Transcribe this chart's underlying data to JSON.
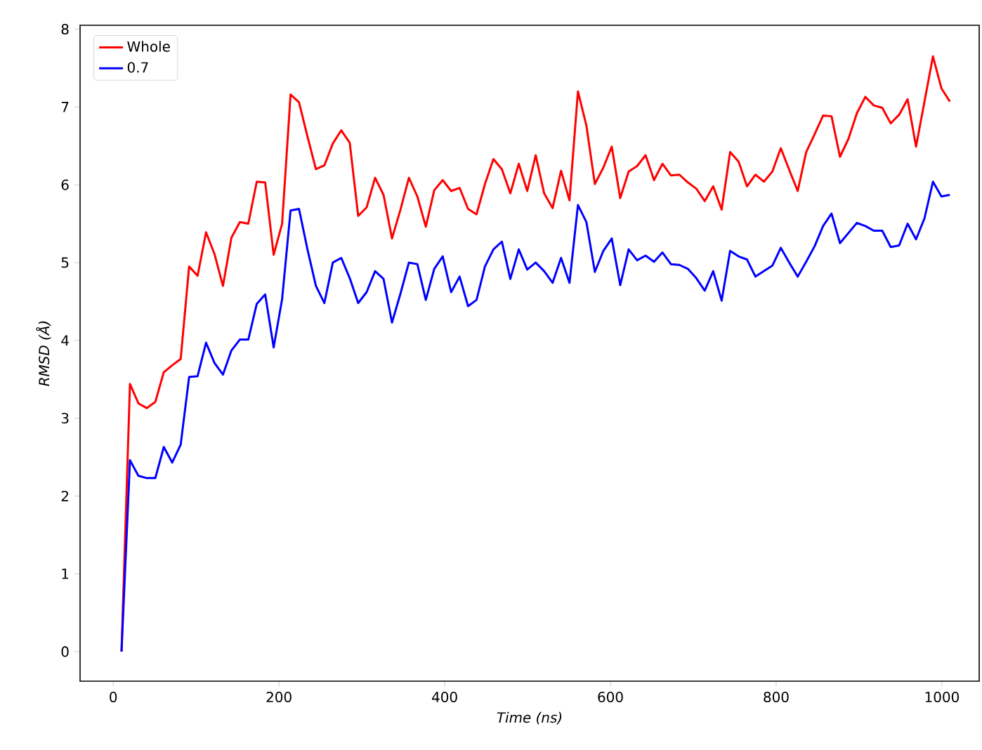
{
  "chart_data": {
    "type": "line",
    "xlabel": "Time (ns)",
    "ylabel": "RMSD (Å)",
    "x": [
      10,
      20.2,
      30.4,
      40.6,
      50.8,
      61,
      71.2,
      81.4,
      91.6,
      101.8,
      112,
      122.2,
      132.4,
      142.6,
      152.8,
      163,
      173.2,
      183.4,
      193.6,
      203.8,
      214,
      224.2,
      234.4,
      244.6,
      254.8,
      265,
      275.2,
      285.4,
      295.6,
      305.8,
      316,
      326.2,
      336.4,
      346.6,
      356.8,
      367,
      377.2,
      387.4,
      397.6,
      407.8,
      418,
      428.2,
      438.4,
      448.6,
      458.8,
      469,
      479.2,
      489.4,
      499.6,
      509.8,
      520,
      530.2,
      540.4,
      550.6,
      560.8,
      571,
      581.2,
      591.4,
      601.6,
      611.8,
      622,
      632.2,
      642.4,
      652.6,
      662.8,
      673,
      683.2,
      693.4,
      703.6,
      713.8,
      724,
      734.2,
      744.4,
      754.6,
      764.8,
      775,
      785.2,
      795.4,
      805.6,
      815.8,
      826,
      836.2,
      846.4,
      856.6,
      866.8,
      877,
      887.2,
      897.4,
      907.6,
      917.8,
      928,
      938.2,
      948.4,
      958.6,
      968.8,
      979,
      989.2,
      999.4,
      1009.6
    ],
    "series": [
      {
        "name": "Whole",
        "color": "#ff0000",
        "values": [
          0,
          3.44,
          3.19,
          3.13,
          3.21,
          3.59,
          3.68,
          3.76,
          4.95,
          4.83,
          5.39,
          5.11,
          4.7,
          5.32,
          5.52,
          5.5,
          6.04,
          6.03,
          5.1,
          5.5,
          7.16,
          7.06,
          6.62,
          6.2,
          6.25,
          6.53,
          6.7,
          6.54,
          5.6,
          5.71,
          6.09,
          5.87,
          5.31,
          5.68,
          6.09,
          5.85,
          5.46,
          5.93,
          6.06,
          5.92,
          5.96,
          5.69,
          5.62,
          6.01,
          6.33,
          6.2,
          5.89,
          6.27,
          5.92,
          6.38,
          5.89,
          5.7,
          6.18,
          5.8,
          7.2,
          6.76,
          6.01,
          6.22,
          6.49,
          5.83,
          6.17,
          6.24,
          6.38,
          6.06,
          6.27,
          6.12,
          6.13,
          6.03,
          5.95,
          5.79,
          5.98,
          5.68,
          6.42,
          6.3,
          5.98,
          6.13,
          6.04,
          6.17,
          6.47,
          6.19,
          5.92,
          6.42,
          6.65,
          6.89,
          6.88,
          6.36,
          6.59,
          6.92,
          7.13,
          7.02,
          6.99,
          6.79,
          6.9,
          7.1,
          6.49,
          7.07,
          7.65,
          7.24,
          7.07
        ]
      },
      {
        "name": "0.7",
        "color": "#0000ff",
        "values": [
          0,
          2.46,
          2.26,
          2.23,
          2.23,
          2.63,
          2.43,
          2.66,
          3.53,
          3.54,
          3.97,
          3.71,
          3.56,
          3.87,
          4.01,
          4.01,
          4.47,
          4.59,
          3.91,
          4.53,
          5.67,
          5.69,
          5.17,
          4.7,
          4.48,
          5.0,
          5.06,
          4.8,
          4.48,
          4.62,
          4.89,
          4.79,
          4.23,
          4.6,
          5.0,
          4.98,
          4.52,
          4.92,
          5.08,
          4.62,
          4.82,
          4.44,
          4.52,
          4.95,
          5.17,
          5.27,
          4.79,
          5.17,
          4.91,
          5.0,
          4.89,
          4.74,
          5.06,
          4.74,
          5.74,
          5.52,
          4.88,
          5.15,
          5.31,
          4.71,
          5.17,
          5.03,
          5.09,
          5.01,
          5.13,
          4.98,
          4.97,
          4.92,
          4.8,
          4.64,
          4.89,
          4.51,
          5.15,
          5.08,
          5.04,
          4.82,
          4.89,
          4.96,
          5.19,
          5.0,
          4.82,
          5.01,
          5.21,
          5.47,
          5.63,
          5.25,
          5.38,
          5.51,
          5.47,
          5.41,
          5.41,
          5.2,
          5.22,
          5.5,
          5.3,
          5.57,
          6.04,
          5.85,
          5.87
        ]
      }
    ],
    "xlim": [
      -40,
      1045
    ],
    "ylim": [
      -0.38,
      8.05
    ],
    "xticks": [
      0,
      200,
      400,
      600,
      800,
      1000
    ],
    "yticks": [
      0,
      1,
      2,
      3,
      4,
      5,
      6,
      7,
      8
    ],
    "legend": "top left",
    "grid": false,
    "marker": "none",
    "line_style": "solid"
  }
}
